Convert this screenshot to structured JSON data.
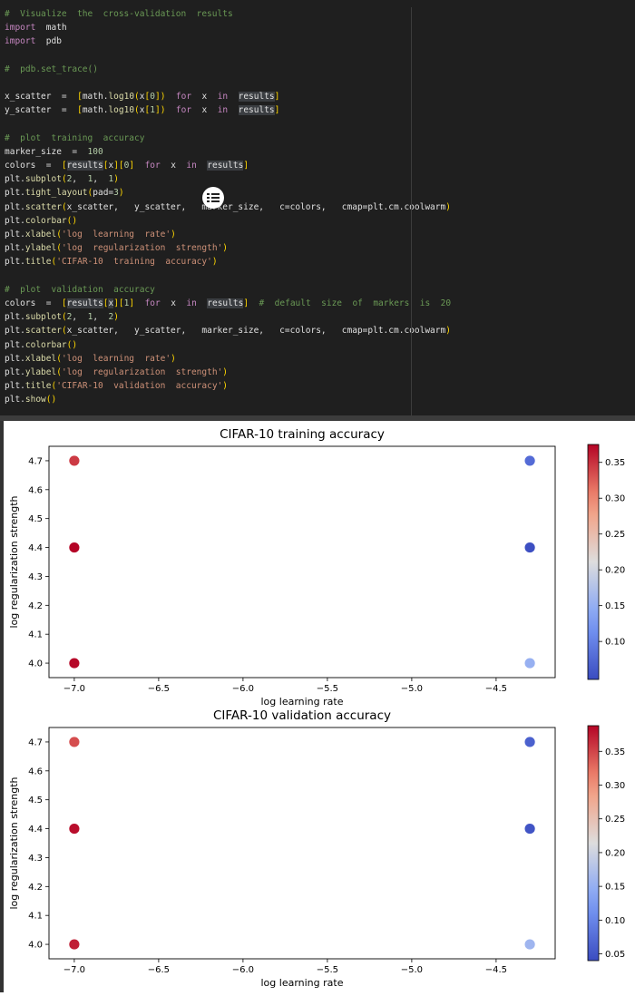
{
  "code": {
    "lines": [
      [
        [
          "com",
          "#  Visualize  the  cross-validation  results"
        ]
      ],
      [
        [
          "kw",
          "import"
        ],
        [
          "var",
          "  math"
        ]
      ],
      [
        [
          "kw",
          "import"
        ],
        [
          "var",
          "  pdb"
        ]
      ],
      [],
      [
        [
          "com",
          "#  pdb.set_trace()"
        ]
      ],
      [],
      [
        [
          "var",
          "x_scatter"
        ],
        [
          "op",
          "  =  "
        ],
        [
          "br",
          "["
        ],
        [
          "var",
          "math."
        ],
        [
          "fn",
          "log10"
        ],
        [
          "br",
          "("
        ],
        [
          "var",
          "x"
        ],
        [
          "br",
          "["
        ],
        [
          "num",
          "0"
        ],
        [
          "br",
          "]"
        ],
        [
          "br",
          ")"
        ],
        [
          "var",
          "  "
        ],
        [
          "kw",
          "for"
        ],
        [
          "var",
          "  x  "
        ],
        [
          "kw",
          "in"
        ],
        [
          "var",
          "  "
        ],
        [
          "hl",
          "results"
        ],
        [
          "br",
          "]"
        ]
      ],
      [
        [
          "var",
          "y_scatter"
        ],
        [
          "op",
          "  =  "
        ],
        [
          "br",
          "["
        ],
        [
          "var",
          "math."
        ],
        [
          "fn",
          "log10"
        ],
        [
          "br",
          "("
        ],
        [
          "var",
          "x"
        ],
        [
          "br",
          "["
        ],
        [
          "num",
          "1"
        ],
        [
          "br",
          "]"
        ],
        [
          "br",
          ")"
        ],
        [
          "var",
          "  "
        ],
        [
          "kw",
          "for"
        ],
        [
          "var",
          "  x  "
        ],
        [
          "kw",
          "in"
        ],
        [
          "var",
          "  "
        ],
        [
          "hl",
          "results"
        ],
        [
          "br",
          "]"
        ]
      ],
      [],
      [
        [
          "com",
          "#  plot  training  accuracy"
        ]
      ],
      [
        [
          "var",
          "marker_size"
        ],
        [
          "op",
          "  =  "
        ],
        [
          "num",
          "100"
        ]
      ],
      [
        [
          "var",
          "colors"
        ],
        [
          "op",
          "  =  "
        ],
        [
          "br",
          "["
        ],
        [
          "hl",
          "results"
        ],
        [
          "br",
          "["
        ],
        [
          "var",
          "x"
        ],
        [
          "br",
          "]"
        ],
        [
          "br",
          "["
        ],
        [
          "num",
          "0"
        ],
        [
          "br",
          "]"
        ],
        [
          "var",
          "  "
        ],
        [
          "kw",
          "for"
        ],
        [
          "var",
          "  x  "
        ],
        [
          "kw",
          "in"
        ],
        [
          "var",
          "  "
        ],
        [
          "hl",
          "results"
        ],
        [
          "br",
          "]"
        ]
      ],
      [
        [
          "var",
          "plt."
        ],
        [
          "fn",
          "subplot"
        ],
        [
          "br",
          "("
        ],
        [
          "num",
          "2"
        ],
        [
          "var",
          ",  "
        ],
        [
          "num",
          "1"
        ],
        [
          "var",
          ",  "
        ],
        [
          "num",
          "1"
        ],
        [
          "br",
          ")"
        ]
      ],
      [
        [
          "var",
          "plt."
        ],
        [
          "fn",
          "tight_layout"
        ],
        [
          "br",
          "("
        ],
        [
          "var",
          "pad="
        ],
        [
          "num",
          "3"
        ],
        [
          "br",
          ")"
        ]
      ],
      [
        [
          "var",
          "plt."
        ],
        [
          "fn",
          "scatter"
        ],
        [
          "br",
          "("
        ],
        [
          "var",
          "x_scatter,   y_scatter,   marker_size,   c=colors,   cmap=plt.cm.coolwarm"
        ],
        [
          "br",
          ")"
        ]
      ],
      [
        [
          "var",
          "plt."
        ],
        [
          "fn",
          "colorbar"
        ],
        [
          "br",
          "()"
        ]
      ],
      [
        [
          "var",
          "plt."
        ],
        [
          "fn",
          "xlabel"
        ],
        [
          "br",
          "("
        ],
        [
          "str",
          "'log  learning  rate'"
        ],
        [
          "br",
          ")"
        ]
      ],
      [
        [
          "var",
          "plt."
        ],
        [
          "fn",
          "ylabel"
        ],
        [
          "br",
          "("
        ],
        [
          "str",
          "'log  regularization  strength'"
        ],
        [
          "br",
          ")"
        ]
      ],
      [
        [
          "var",
          "plt."
        ],
        [
          "fn",
          "title"
        ],
        [
          "br",
          "("
        ],
        [
          "str",
          "'CIFAR-10  training  accuracy'"
        ],
        [
          "br",
          ")"
        ]
      ],
      [],
      [
        [
          "com",
          "#  plot  validation  accuracy"
        ]
      ],
      [
        [
          "var",
          "colors"
        ],
        [
          "op",
          "  =  "
        ],
        [
          "br",
          "["
        ],
        [
          "hl",
          "results"
        ],
        [
          "br",
          "["
        ],
        [
          "hl",
          "x"
        ],
        [
          "br",
          "]"
        ],
        [
          "br",
          "["
        ],
        [
          "num",
          "1"
        ],
        [
          "br",
          "]"
        ],
        [
          "var",
          "  "
        ],
        [
          "kw",
          "for"
        ],
        [
          "var",
          "  x  "
        ],
        [
          "kw",
          "in"
        ],
        [
          "var",
          "  "
        ],
        [
          "hl",
          "results"
        ],
        [
          "br",
          "]"
        ],
        [
          "var",
          "  "
        ],
        [
          "com",
          "#  default  size  of  markers  is  20"
        ]
      ],
      [
        [
          "var",
          "plt."
        ],
        [
          "fn",
          "subplot"
        ],
        [
          "br",
          "("
        ],
        [
          "num",
          "2"
        ],
        [
          "var",
          ",  "
        ],
        [
          "num",
          "1"
        ],
        [
          "var",
          ",  "
        ],
        [
          "num",
          "2"
        ],
        [
          "br",
          ")"
        ]
      ],
      [
        [
          "var",
          "plt."
        ],
        [
          "fn",
          "scatter"
        ],
        [
          "br",
          "("
        ],
        [
          "var",
          "x_scatter,   y_scatter,   marker_size,   c=colors,   cmap=plt.cm.coolwarm"
        ],
        [
          "br",
          ")"
        ]
      ],
      [
        [
          "var",
          "plt."
        ],
        [
          "fn",
          "colorbar"
        ],
        [
          "br",
          "()"
        ]
      ],
      [
        [
          "var",
          "plt."
        ],
        [
          "fn",
          "xlabel"
        ],
        [
          "br",
          "("
        ],
        [
          "str",
          "'log  learning  rate'"
        ],
        [
          "br",
          ")"
        ]
      ],
      [
        [
          "var",
          "plt."
        ],
        [
          "fn",
          "ylabel"
        ],
        [
          "br",
          "("
        ],
        [
          "str",
          "'log  regularization  strength'"
        ],
        [
          "br",
          ")"
        ]
      ],
      [
        [
          "var",
          "plt."
        ],
        [
          "fn",
          "title"
        ],
        [
          "br",
          "("
        ],
        [
          "str",
          "'CIFAR-10  validation  accuracy'"
        ],
        [
          "br",
          ")"
        ]
      ],
      [
        [
          "var",
          "plt."
        ],
        [
          "fn",
          "show"
        ],
        [
          "br",
          "()"
        ]
      ]
    ],
    "action_icon": "list-settings-icon"
  },
  "colors": {
    "editor_bg": "#1f1f1f",
    "comment": "#6a9955",
    "keyword": "#c586c0",
    "function": "#dcdcaa",
    "number": "#b5cea8",
    "string": "#ce9178",
    "bracket": "#ffd700"
  },
  "chart_data": [
    {
      "type": "scatter",
      "title": "CIFAR-10 training accuracy",
      "xlabel": "log learning rate",
      "ylabel": "log regularization strength",
      "xlim": [
        -7.15,
        -4.15
      ],
      "ylim": [
        3.95,
        4.75
      ],
      "xticks": [
        -7.0,
        -6.5,
        -6.0,
        -5.5,
        -5.0,
        -4.5
      ],
      "xtick_labels": [
        "−7.0",
        "−6.5",
        "−6.0",
        "−5.5",
        "−5.0",
        "−4.5"
      ],
      "yticks": [
        4.0,
        4.1,
        4.2,
        4.3,
        4.4,
        4.5,
        4.6,
        4.7
      ],
      "ytick_labels": [
        "4.0",
        "4.1",
        "4.2",
        "4.3",
        "4.4",
        "4.5",
        "4.6",
        "4.7"
      ],
      "cmap": "coolwarm",
      "clim": [
        0.047,
        0.375
      ],
      "colorbar_ticks": [
        0.1,
        0.15,
        0.2,
        0.25,
        0.3,
        0.35
      ],
      "colorbar_tick_labels": [
        "0.10",
        "0.15",
        "0.20",
        "0.25",
        "0.30",
        "0.35"
      ],
      "points": [
        {
          "x": -7.0,
          "y": 4.7,
          "value": 0.345
        },
        {
          "x": -7.0,
          "y": 4.4,
          "value": 0.375
        },
        {
          "x": -7.0,
          "y": 4.0,
          "value": 0.373
        },
        {
          "x": -4.3,
          "y": 4.7,
          "value": 0.078
        },
        {
          "x": -4.3,
          "y": 4.4,
          "value": 0.05
        },
        {
          "x": -4.3,
          "y": 4.0,
          "value": 0.152
        }
      ]
    },
    {
      "type": "scatter",
      "title": "CIFAR-10 validation accuracy",
      "xlabel": "log learning rate",
      "ylabel": "log regularization strength",
      "xlim": [
        -7.15,
        -4.15
      ],
      "ylim": [
        3.95,
        4.75
      ],
      "xticks": [
        -7.0,
        -6.5,
        -6.0,
        -5.5,
        -5.0,
        -4.5
      ],
      "xtick_labels": [
        "−7.0",
        "−6.5",
        "−6.0",
        "−5.5",
        "−5.0",
        "−4.5"
      ],
      "yticks": [
        4.0,
        4.1,
        4.2,
        4.3,
        4.4,
        4.5,
        4.6,
        4.7
      ],
      "ytick_labels": [
        "4.0",
        "4.1",
        "4.2",
        "4.3",
        "4.4",
        "4.5",
        "4.6",
        "4.7"
      ],
      "cmap": "coolwarm",
      "clim": [
        0.04,
        0.388
      ],
      "colorbar_ticks": [
        0.05,
        0.1,
        0.15,
        0.2,
        0.25,
        0.3,
        0.35
      ],
      "colorbar_tick_labels": [
        "0.05",
        "0.10",
        "0.15",
        "0.20",
        "0.25",
        "0.30",
        "0.35"
      ],
      "points": [
        {
          "x": -7.0,
          "y": 4.7,
          "value": 0.345
        },
        {
          "x": -7.0,
          "y": 4.4,
          "value": 0.382
        },
        {
          "x": -7.0,
          "y": 4.0,
          "value": 0.372
        },
        {
          "x": -4.3,
          "y": 4.7,
          "value": 0.062
        },
        {
          "x": -4.3,
          "y": 4.4,
          "value": 0.048
        },
        {
          "x": -4.3,
          "y": 4.0,
          "value": 0.158
        }
      ]
    }
  ]
}
